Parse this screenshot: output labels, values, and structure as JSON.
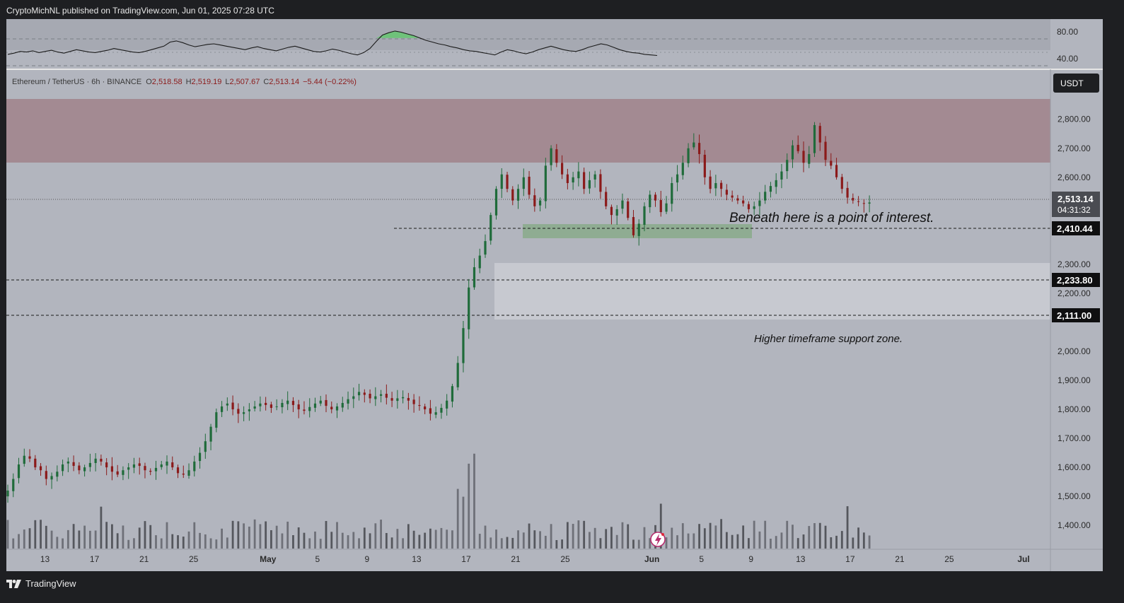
{
  "header": {
    "published": "CryptoMichNL published on TradingView.com, Jun 01, 2025 07:28 UTC"
  },
  "footer": {
    "brand": "TradingView"
  },
  "symbol_line": {
    "name": "Ethereum / TetherUS · 6h · BINANCE",
    "o_label": "O",
    "o": "2,518.58",
    "h_label": "H",
    "h": "2,519.19",
    "l_label": "L",
    "l": "2,507.67",
    "c_label": "C",
    "c": "2,513.14",
    "change": "−5.44 (−0.22%)"
  },
  "currency_button": "USDT",
  "price_scale": {
    "ticks": [
      "2,800.00",
      "2,700.00",
      "2,600.00",
      "2,300.00",
      "2,200.00",
      "2,000.00",
      "1,900.00",
      "1,800.00",
      "1,700.00",
      "1,600.00",
      "1,500.00",
      "1,400.00"
    ],
    "last_price": "2,513.14",
    "countdown": "04:31:32",
    "levels": [
      "2,410.44",
      "2,233.80",
      "2,111.00"
    ]
  },
  "rsi_scale": {
    "ticks": [
      "80.00",
      "40.00"
    ]
  },
  "time_axis": {
    "labels": [
      "13",
      "17",
      "21",
      "25",
      "May",
      "5",
      "9",
      "13",
      "17",
      "21",
      "25",
      "Jun",
      "5",
      "9",
      "13",
      "17",
      "21",
      "25",
      "Jul"
    ]
  },
  "annotations": {
    "poi": "Beneath here is a point of interest.",
    "support": "Higher timeframe support zone."
  },
  "colors": {
    "up": "#1f6b3a",
    "down": "#8b1a1a",
    "resistance_zone": "#a38a92",
    "poi_zone": "#8fac92",
    "support_zone": "#c7c9d0",
    "chart_bg": "#b2b5be"
  },
  "chart_data": {
    "type": "candlestick",
    "symbol": "Ethereum / TetherUS",
    "interval": "6h",
    "exchange": "BINANCE",
    "ylim": [
      1320,
      2870
    ],
    "x_range_days": [
      "2025-04-10",
      "2025-07-01"
    ],
    "candles_start": "2025-04-10",
    "last_close": 2513.14,
    "horizontal_levels": [
      2410.44,
      2233.8,
      2111.0
    ],
    "zones": [
      {
        "name": "resistance",
        "from": 2635,
        "to": 2855
      },
      {
        "name": "point-of-interest",
        "from": 2383,
        "to": 2415
      },
      {
        "name": "higher-timeframe-support",
        "from": 2096,
        "to": 2288
      }
    ],
    "closes": [
      1520,
      1560,
      1610,
      1640,
      1630,
      1600,
      1590,
      1560,
      1570,
      1585,
      1610,
      1620,
      1605,
      1590,
      1600,
      1615,
      1630,
      1620,
      1600,
      1585,
      1575,
      1590,
      1600,
      1610,
      1605,
      1590,
      1585,
      1598,
      1610,
      1620,
      1600,
      1580,
      1575,
      1590,
      1620,
      1650,
      1690,
      1740,
      1790,
      1810,
      1820,
      1800,
      1785,
      1790,
      1800,
      1810,
      1820,
      1815,
      1805,
      1810,
      1822,
      1830,
      1815,
      1800,
      1795,
      1808,
      1820,
      1830,
      1812,
      1800,
      1810,
      1822,
      1835,
      1845,
      1860,
      1850,
      1838,
      1845,
      1852,
      1840,
      1830,
      1838,
      1842,
      1830,
      1818,
      1812,
      1800,
      1785,
      1790,
      1805,
      1830,
      1880,
      1960,
      2080,
      2220,
      2290,
      2330,
      2380,
      2470,
      2560,
      2610,
      2560,
      2520,
      2560,
      2600,
      2540,
      2500,
      2520,
      2640,
      2700,
      2650,
      2610,
      2580,
      2600,
      2620,
      2560,
      2590,
      2610,
      2550,
      2500,
      2470,
      2490,
      2520,
      2460,
      2400,
      2440,
      2500,
      2540,
      2520,
      2480,
      2510,
      2580,
      2610,
      2650,
      2700,
      2720,
      2680,
      2600,
      2560,
      2580,
      2560,
      2540,
      2530,
      2520,
      2510,
      2490,
      2500,
      2520,
      2550,
      2570,
      2590,
      2620,
      2660,
      2710,
      2690,
      2650,
      2680,
      2780,
      2720,
      2660,
      2640,
      2600,
      2560,
      2530,
      2520,
      2515,
      2510,
      2513.14
    ],
    "rsi": {
      "ylim": [
        20,
        100
      ],
      "ticks": [
        80,
        40
      ],
      "values": [
        42,
        44,
        47,
        46,
        48,
        45,
        47,
        49,
        46,
        44,
        47,
        50,
        48,
        46,
        45,
        47,
        49,
        52,
        50,
        48,
        46,
        45,
        47,
        50,
        53,
        56,
        63,
        65,
        62,
        58,
        55,
        57,
        59,
        60,
        58,
        56,
        54,
        52,
        50,
        53,
        55,
        52,
        50,
        48,
        51,
        54,
        56,
        53,
        50,
        47,
        46,
        48,
        51,
        49,
        46,
        43,
        41,
        45,
        52,
        64,
        75,
        79,
        82,
        80,
        77,
        74,
        70,
        66,
        63,
        60,
        58,
        55,
        53,
        50,
        48,
        47,
        45,
        43,
        41,
        46,
        50,
        48,
        45,
        43,
        46,
        50,
        53,
        56,
        53,
        50,
        48,
        47,
        50,
        54,
        57,
        60,
        58,
        54,
        50,
        47,
        45,
        44,
        42,
        41,
        40
      ]
    }
  }
}
